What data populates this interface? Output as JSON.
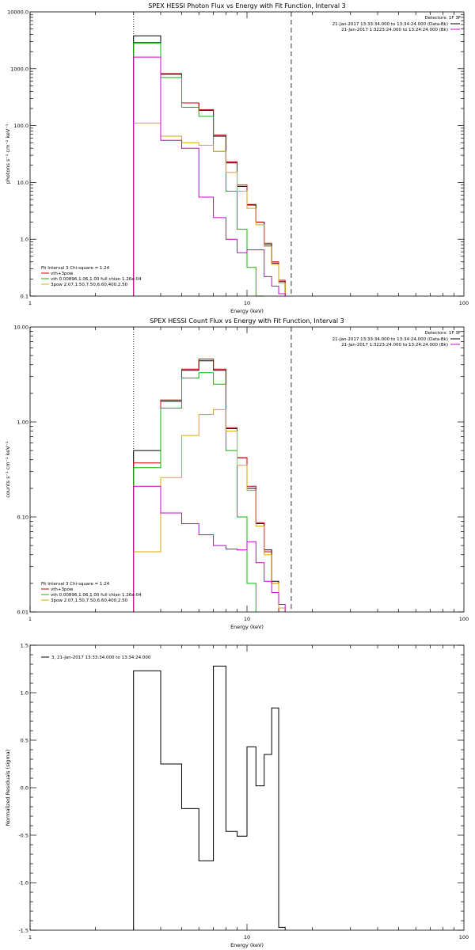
{
  "chart_data": [
    {
      "type": "line",
      "title": "SPEX HESSI Photon Flux vs Energy with Fit Function, Interval 3",
      "xlabel": "Energy (keV)",
      "ylabel": "photons s⁻¹ cm⁻² keV⁻¹",
      "xscale": "log",
      "yscale": "log",
      "xlim": [
        1,
        100
      ],
      "ylim": [
        0.1,
        10000
      ],
      "xticks": [
        1,
        10,
        100
      ],
      "xtick_labels": [
        "1",
        "10",
        "100"
      ],
      "yticks": [
        0.1,
        1,
        10,
        100,
        1000,
        10000
      ],
      "ytick_labels": [
        "0.1",
        "1.0",
        "10.0",
        "100.0",
        "1000.0",
        "10000.0"
      ],
      "fit_range_keV": [
        3,
        16
      ],
      "bin_edges": [
        3,
        4,
        5,
        6,
        7,
        8,
        9,
        10,
        11,
        12,
        13,
        14,
        15,
        16,
        17
      ],
      "legend_topright": {
        "header": "Detectors: 1F 3F",
        "entries": [
          {
            "label": "21-Jan-2017 13:33:34.000 to 13:34:24.000 (Data-Bk)",
            "color": "#000000"
          },
          {
            "label": "21-Jan-2017 1:3223:24.000 to 13:24:24.000 (Bk)",
            "color": "#cc00cc"
          }
        ]
      },
      "legend_bottomleft": {
        "header": "Fit Interval 3   Chi-square = 1.24",
        "entries": [
          {
            "label": "vth+3pow",
            "color": "#cc0000"
          },
          {
            "label": "vth 0.00896,1.06,1.00  full chian 1.26e-04",
            "color": "#00bb00"
          },
          {
            "label": "3pow 2.07,1.50,7.50,6.60,400,2.50",
            "color": "#ddaa00"
          }
        ]
      },
      "series": [
        {
          "name": "",
          "color": "#000000",
          "values": [
            3800,
            800,
            250,
            185,
            65,
            22,
            8.5,
            4.0,
            2.0,
            0.8,
            0.38,
            0.18,
            null,
            null
          ]
        },
        {
          "name": "vth+3pow",
          "color": "#cc0000",
          "values": [
            2900,
            820,
            250,
            190,
            68,
            23,
            9,
            4.1,
            2.0,
            0.85,
            0.4,
            0.19,
            null,
            null
          ]
        },
        {
          "name": "vth 0.00896,1.06,1.00  full chian 1.26e-04",
          "color": "#00bb00",
          "values": [
            2800,
            700,
            210,
            145,
            35,
            7,
            1.5,
            0.32,
            0.1,
            null,
            null,
            null,
            null,
            null
          ]
        },
        {
          "name": "3pow 2.07,1.50,7.50,6.60,400,2.50",
          "color": "#ddaa00",
          "values": [
            110,
            65,
            50,
            45,
            35,
            15,
            7,
            3.5,
            1.8,
            0.75,
            0.36,
            0.17,
            null,
            null
          ]
        },
        {
          "name": "",
          "color": "#cc00cc",
          "values": [
            1600,
            55,
            40,
            5.5,
            2.4,
            1.0,
            0.58,
            0.65,
            0.65,
            0.22,
            0.15,
            0.11,
            null,
            null
          ]
        }
      ]
    },
    {
      "type": "line",
      "title": "SPEX HESSI Count Flux vs Energy with Fit Function, Interval 3",
      "xlabel": "Energy (keV)",
      "ylabel": "counts s⁻¹ cm⁻² keV⁻¹",
      "xscale": "log",
      "yscale": "log",
      "xlim": [
        1,
        100
      ],
      "ylim": [
        0.01,
        10
      ],
      "xticks": [
        1,
        10,
        100
      ],
      "xtick_labels": [
        "1",
        "10",
        "100"
      ],
      "yticks": [
        0.01,
        0.1,
        1,
        10
      ],
      "ytick_labels": [
        "0.01",
        "0.10",
        "1.00",
        "10.00"
      ],
      "fit_range_keV": [
        3,
        16
      ],
      "bin_edges": [
        3,
        4,
        5,
        6,
        7,
        8,
        9,
        10,
        11,
        12,
        13,
        14,
        15,
        16,
        17
      ],
      "legend_topright": {
        "header": "Detectors: 1F 3F",
        "entries": [
          {
            "label": "21-Jan-2017 13:33:34.000 to 13:34:24.000 (Data-Bk)",
            "color": "#000000"
          },
          {
            "label": "21-Jan-2017 1:3223:24.000 to 13:24:24.000 (Bk)",
            "color": "#cc00cc"
          }
        ]
      },
      "legend_bottomleft": {
        "header": "Fit Interval 3   Chi-square = 1.24",
        "entries": [
          {
            "label": "vth+3pow",
            "color": "#cc0000"
          },
          {
            "label": "vth 0.00896,1.06,1.00  full chian 1.26e-04",
            "color": "#00bb00"
          },
          {
            "label": "3pow 2.07,1.50,7.50,6.60,400,2.50",
            "color": "#ddaa00"
          }
        ]
      },
      "series": [
        {
          "name": "",
          "color": "#000000",
          "values": [
            0.5,
            1.65,
            3.5,
            4.4,
            3.5,
            0.85,
            0.42,
            0.2,
            0.085,
            0.045,
            0.021,
            null,
            null,
            null
          ]
        },
        {
          "name": "vth+3pow",
          "color": "#cc0000",
          "values": [
            0.37,
            1.7,
            3.6,
            4.6,
            3.6,
            0.87,
            0.42,
            0.21,
            0.087,
            0.043,
            0.02,
            null,
            null,
            null
          ]
        },
        {
          "name": "vth 0.00896,1.06,1.00  full chian 1.26e-04",
          "color": "#00bb00",
          "values": [
            0.33,
            1.4,
            2.9,
            3.3,
            2.5,
            0.5,
            0.1,
            0.02,
            null,
            null,
            null,
            null,
            null,
            null
          ]
        },
        {
          "name": "3pow 2.07,1.50,7.50,6.60,400,2.50",
          "color": "#ddaa00",
          "values": [
            0.043,
            0.26,
            0.72,
            1.2,
            1.35,
            0.8,
            0.35,
            0.19,
            0.08,
            0.04,
            0.02,
            0.011,
            null,
            null
          ]
        },
        {
          "name": "",
          "color": "#cc00cc",
          "values": [
            0.21,
            0.11,
            0.085,
            0.065,
            0.05,
            0.046,
            0.045,
            0.055,
            0.033,
            0.021,
            0.016,
            0.012,
            null,
            null
          ]
        }
      ]
    },
    {
      "type": "line",
      "title": "",
      "xlabel": "Energy (keV)",
      "ylabel": "Normalized Residuals (sigma)",
      "xscale": "log",
      "xlim": [
        1,
        100
      ],
      "ylim": [
        -1.5,
        1.5
      ],
      "xticks": [
        1,
        10,
        100
      ],
      "xtick_labels": [
        "1",
        "10",
        "100"
      ],
      "yticks": [
        -1.5,
        -1.0,
        -0.5,
        0.0,
        0.5,
        1.0,
        1.5
      ],
      "ytick_labels": [
        "-1.5",
        "-1.0",
        "-0.5",
        "0.0",
        "0.5",
        "1.0",
        "1.5"
      ],
      "bin_edges": [
        3,
        4,
        5,
        6,
        7,
        8,
        9,
        10,
        11,
        12,
        13,
        14,
        15
      ],
      "legend": {
        "label": "3, 21-Jan-2017 13:33:34.000 to 13:34:24.000",
        "color": "#000000"
      },
      "series": [
        {
          "name": "3, 21-Jan-2017 13:33:34.000 to 13:34:24.000",
          "color": "#000000",
          "values": [
            1.23,
            0.25,
            -0.22,
            -0.77,
            1.28,
            -0.46,
            -0.51,
            0.43,
            0.02,
            0.35,
            0.84,
            -1.47
          ]
        }
      ]
    }
  ]
}
